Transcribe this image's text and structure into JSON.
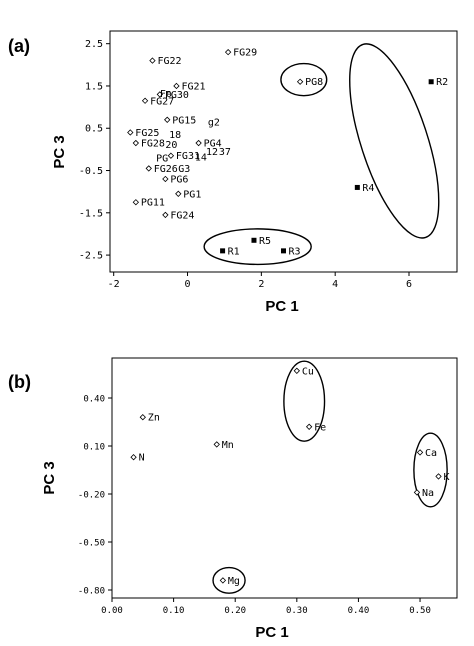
{
  "chart_data": [
    {
      "panel": "(a)",
      "type": "scatter",
      "xlabel": "PC 1",
      "ylabel": "PC 3",
      "xlim": [
        -2.1,
        7.3
      ],
      "ylim": [
        -2.9,
        2.8
      ],
      "xticks": [
        -2,
        0,
        2,
        4,
        6
      ],
      "xtick_labels": [
        "-2",
        "0",
        "2",
        "4",
        "6"
      ],
      "yticks": [
        2.5,
        1.5,
        0.5,
        -0.5,
        -1.5,
        -2.5
      ],
      "ytick_labels": [
        "2.5",
        "1.5",
        "0.5",
        "-0.5",
        "-1.5",
        "-2.5"
      ],
      "grid": false,
      "points": [
        {
          "label": "FG22",
          "x": -0.95,
          "y": 2.1,
          "marker": "diamond"
        },
        {
          "label": "FG29",
          "x": 1.1,
          "y": 2.3,
          "marker": "diamond"
        },
        {
          "label": "FG21",
          "x": -0.3,
          "y": 1.5,
          "marker": "diamond"
        },
        {
          "label": "FG30",
          "x": -0.75,
          "y": 1.3,
          "marker": "diamond"
        },
        {
          "label": "FG27",
          "x": -1.15,
          "y": 1.15,
          "marker": "diamond"
        },
        {
          "label": "PG15",
          "x": -0.55,
          "y": 0.7,
          "marker": "diamond"
        },
        {
          "label": "FG25",
          "x": -1.55,
          "y": 0.4,
          "marker": "diamond"
        },
        {
          "label": "FG28",
          "x": -1.4,
          "y": 0.15,
          "marker": "diamond"
        },
        {
          "label": "PG4",
          "x": 0.3,
          "y": 0.15,
          "marker": "diamond"
        },
        {
          "label": "FG31",
          "x": -0.45,
          "y": -0.15,
          "marker": "diamond"
        },
        {
          "label": "FG26",
          "x": -1.05,
          "y": -0.45,
          "marker": "diamond"
        },
        {
          "label": "PG6",
          "x": -0.6,
          "y": -0.7,
          "marker": "diamond"
        },
        {
          "label": "PG1",
          "x": -0.25,
          "y": -1.05,
          "marker": "diamond"
        },
        {
          "label": "PG11",
          "x": -1.4,
          "y": -1.25,
          "marker": "diamond"
        },
        {
          "label": "FG24",
          "x": -0.6,
          "y": -1.55,
          "marker": "diamond"
        },
        {
          "label": "PG8",
          "x": 3.05,
          "y": 1.6,
          "marker": "diamond"
        },
        {
          "label": "R2",
          "x": 6.6,
          "y": 1.6,
          "marker": "square"
        },
        {
          "label": "R4",
          "x": 4.6,
          "y": -0.9,
          "marker": "square"
        },
        {
          "label": "R5",
          "x": 1.8,
          "y": -2.15,
          "marker": "square"
        },
        {
          "label": "R1",
          "x": 0.95,
          "y": -2.4,
          "marker": "square"
        },
        {
          "label": "R3",
          "x": 2.6,
          "y": -2.4,
          "marker": "square"
        }
      ],
      "annotation_texts": [
        "g2",
        "18",
        "20",
        "37",
        "14",
        "G3",
        "12",
        "Fo",
        "PG"
      ],
      "annotations": [
        {
          "text": "g2",
          "x": 0.55,
          "y": 0.65
        },
        {
          "text": "18",
          "x": -0.5,
          "y": 0.35
        },
        {
          "text": "20",
          "x": -0.6,
          "y": 0.12
        },
        {
          "text": "37",
          "x": 0.85,
          "y": -0.05
        },
        {
          "text": "14",
          "x": 0.2,
          "y": -0.18
        },
        {
          "text": "G3",
          "x": -0.25,
          "y": -0.45
        },
        {
          "text": "12",
          "x": 0.5,
          "y": -0.05
        },
        {
          "text": "Fo",
          "x": -0.75,
          "y": 1.32
        },
        {
          "text": "PG",
          "x": -0.85,
          "y": -0.2
        }
      ],
      "groups": [
        {
          "cx": 3.15,
          "cy": 1.65,
          "rx": 0.62,
          "ry": 0.38,
          "angle": 0
        },
        {
          "cx": 5.6,
          "cy": 0.2,
          "rx": 0.9,
          "ry": 2.4,
          "angle": -18
        },
        {
          "cx": 1.9,
          "cy": -2.3,
          "rx": 1.45,
          "ry": 0.42,
          "angle": 0
        }
      ]
    },
    {
      "panel": "(b)",
      "type": "scatter",
      "xlabel": "PC 1",
      "ylabel": "PC 3",
      "xlim": [
        0.0,
        0.56
      ],
      "ylim": [
        -0.85,
        0.65
      ],
      "xticks": [
        0.0,
        0.1,
        0.2,
        0.3,
        0.4,
        0.5
      ],
      "xtick_labels": [
        "0.00",
        "0.10",
        "0.20",
        "0.30",
        "0.40",
        "0.50"
      ],
      "yticks": [
        0.4,
        0.1,
        -0.2,
        -0.5,
        -0.8
      ],
      "ytick_labels": [
        "0.40",
        "0.10",
        "-0.20",
        "-0.50",
        "-0.80"
      ],
      "grid": false,
      "points": [
        {
          "label": "Cu",
          "x": 0.3,
          "y": 0.57,
          "marker": "diamond"
        },
        {
          "label": "Fe",
          "x": 0.32,
          "y": 0.22,
          "marker": "diamond"
        },
        {
          "label": "Zn",
          "x": 0.05,
          "y": 0.28,
          "marker": "diamond"
        },
        {
          "label": "Mn",
          "x": 0.17,
          "y": 0.11,
          "marker": "diamond"
        },
        {
          "label": "N",
          "x": 0.035,
          "y": 0.03,
          "marker": "diamond"
        },
        {
          "label": "Ca",
          "x": 0.5,
          "y": 0.06,
          "marker": "diamond"
        },
        {
          "label": "K",
          "x": 0.53,
          "y": -0.09,
          "marker": "diamond"
        },
        {
          "label": "Na",
          "x": 0.495,
          "y": -0.19,
          "marker": "diamond"
        },
        {
          "label": "Mg",
          "x": 0.18,
          "y": -0.74,
          "marker": "diamond"
        }
      ],
      "groups": [
        {
          "cx": 0.312,
          "cy": 0.38,
          "rx": 0.033,
          "ry": 0.25,
          "angle": 0
        },
        {
          "cx": 0.517,
          "cy": -0.05,
          "rx": 0.027,
          "ry": 0.23,
          "angle": 0
        },
        {
          "cx": 0.19,
          "cy": -0.74,
          "rx": 0.026,
          "ry": 0.08,
          "angle": 0
        }
      ]
    }
  ]
}
